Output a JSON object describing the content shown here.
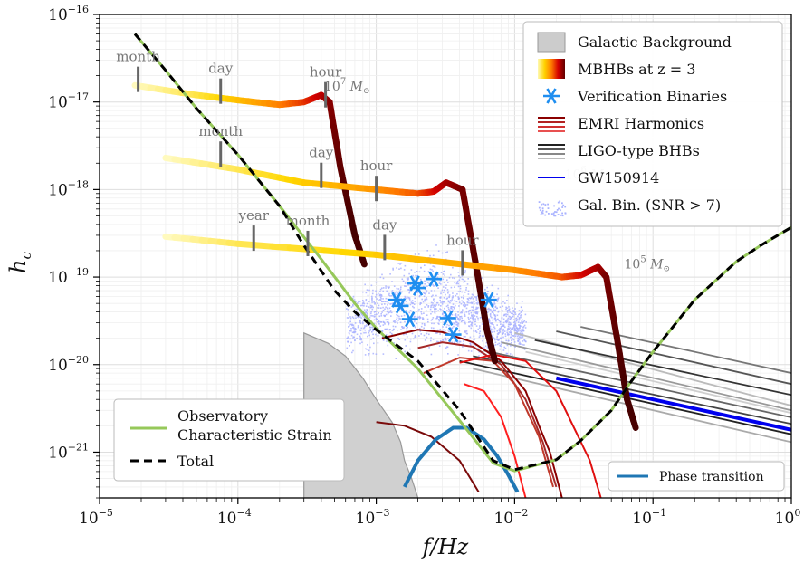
{
  "chart_data": {
    "type": "line",
    "xlabel": "f/Hz",
    "ylabel": "h_c",
    "x_scale": "log",
    "y_scale": "log",
    "xlim": [
      1e-05,
      1
    ],
    "ylim": [
      3e-22,
      1e-16
    ],
    "x_ticks": [
      {
        "base": "10",
        "exp": "−5",
        "value": 1e-05
      },
      {
        "base": "10",
        "exp": "−4",
        "value": 0.0001
      },
      {
        "base": "10",
        "exp": "−3",
        "value": 0.001
      },
      {
        "base": "10",
        "exp": "−2",
        "value": 0.01
      },
      {
        "base": "10",
        "exp": "−1",
        "value": 0.1
      },
      {
        "base": "10",
        "exp": "0",
        "value": 1
      }
    ],
    "y_ticks": [
      {
        "base": "10",
        "exp": "−16",
        "value": 1e-16
      },
      {
        "base": "10",
        "exp": "−17",
        "value": 1e-17
      },
      {
        "base": "10",
        "exp": "−18",
        "value": 1e-18
      },
      {
        "base": "10",
        "exp": "−19",
        "value": 1e-19
      },
      {
        "base": "10",
        "exp": "−20",
        "value": 1e-20
      },
      {
        "base": "10",
        "exp": "−21",
        "value": 1e-21
      }
    ],
    "grid": true,
    "legends": {
      "main": {
        "placement": "top-right",
        "entries": [
          {
            "label": "Galactic Background",
            "kind": "patch",
            "color": "#cccccc"
          },
          {
            "label": "MBHBs at z = 3",
            "kind": "gradient",
            "colors": [
              "#fff9b0",
              "#ffd200",
              "#ff7a00",
              "#d40000",
              "#600000"
            ]
          },
          {
            "label": "Verification Binaries",
            "kind": "star",
            "color": "#1f8ef0"
          },
          {
            "label": "EMRI Harmonics",
            "kind": "lines",
            "color": "#a01818"
          },
          {
            "label": "LIGO-type BHBs",
            "kind": "lines",
            "color": "#333333"
          },
          {
            "label": "GW150914",
            "kind": "line",
            "color": "#0000ee"
          },
          {
            "label": "Gal. Bin. (SNR > 7)",
            "kind": "dots",
            "color": "#9aa6ff"
          }
        ]
      },
      "lower_left": {
        "placement": "lower-left",
        "entries": [
          {
            "label": "Observatory",
            "label2": "Characteristic Strain",
            "kind": "line",
            "color": "#96c85a"
          },
          {
            "label": "Total",
            "kind": "dashed",
            "color": "#000000"
          }
        ]
      },
      "lower_right": {
        "placement": "lower-right",
        "entries": [
          {
            "label": "Phase transition",
            "kind": "line",
            "color": "#1f77b4"
          }
        ]
      }
    },
    "mass_labels": [
      {
        "text": "10",
        "exp": "7",
        "unit": "M",
        "f": 0.00042,
        "h": 1.35e-17
      },
      {
        "text": "10",
        "exp": "6",
        "unit": "M",
        "f": 0.023,
        "h": 1.32e-18
      },
      {
        "text": "10",
        "exp": "5",
        "unit": "M",
        "f": 0.062,
        "h": 1.25e-19
      }
    ],
    "time_markers": [
      {
        "label": "month",
        "f": 1.9e-05,
        "h": 1.5e-17
      },
      {
        "label": "day",
        "f": 7.5e-05,
        "h": 1.1e-17
      },
      {
        "label": "hour",
        "f": 0.00043,
        "h": 1e-17
      },
      {
        "label": "year",
        "f": 3e-06,
        "h": 2.4e-18
      },
      {
        "label": "month",
        "f": 7.5e-05,
        "h": 2.1e-18
      },
      {
        "label": "day",
        "f": 0.0004,
        "h": 1.2e-18
      },
      {
        "label": "hour",
        "f": 0.001,
        "h": 8.5e-19
      },
      {
        "label": "year",
        "f": 0.00013,
        "h": 2.3e-19
      },
      {
        "label": "month",
        "f": 0.00032,
        "h": 2e-19
      },
      {
        "label": "day",
        "f": 0.00115,
        "h": 1.8e-19
      },
      {
        "label": "hour",
        "f": 0.0042,
        "h": 1.2e-19
      }
    ],
    "series": [
      {
        "kind": "observatory",
        "color": "#96c85a",
        "points": [
          [
            1.8e-05,
            6e-17
          ],
          [
            3e-05,
            2.3e-17
          ],
          [
            5e-05,
            8.5e-18
          ],
          [
            0.0001,
            2.5e-18
          ],
          [
            0.0002,
            6.5e-19
          ],
          [
            0.0004,
            1.6e-19
          ],
          [
            0.0007,
            5e-20
          ],
          [
            0.001,
            2.6e-20
          ],
          [
            0.002,
            9e-21
          ],
          [
            0.004,
            2.3e-21
          ],
          [
            0.007,
            7.5e-22
          ],
          [
            0.01,
            6.1e-22
          ],
          [
            0.02,
            8.2e-22
          ],
          [
            0.03,
            1.35e-21
          ],
          [
            0.05,
            3e-21
          ],
          [
            0.07,
            6.5e-21
          ],
          [
            0.1,
            1.4e-20
          ],
          [
            0.2,
            5.5e-20
          ],
          [
            0.4,
            1.5e-19
          ],
          [
            0.6,
            2.3e-19
          ],
          [
            1,
            3.7e-19
          ]
        ]
      },
      {
        "kind": "total",
        "color": "#000000",
        "dashed": true,
        "points": [
          [
            1.8e-05,
            6e-17
          ],
          [
            3e-05,
            2.3e-17
          ],
          [
            5e-05,
            8.5e-18
          ],
          [
            0.0001,
            2.5e-18
          ],
          [
            0.0002,
            6.5e-19
          ],
          [
            0.0003,
            2.3e-19
          ],
          [
            0.0005,
            7e-20
          ],
          [
            0.0007,
            4e-20
          ],
          [
            0.001,
            2.5e-20
          ],
          [
            0.002,
            1.1e-20
          ],
          [
            0.004,
            3e-21
          ],
          [
            0.007,
            8e-22
          ],
          [
            0.01,
            6.3e-22
          ],
          [
            0.02,
            8.2e-22
          ],
          [
            0.03,
            1.35e-21
          ],
          [
            0.05,
            3e-21
          ],
          [
            0.07,
            6.5e-21
          ],
          [
            0.1,
            1.4e-20
          ],
          [
            0.2,
            5.5e-20
          ],
          [
            0.4,
            1.5e-19
          ],
          [
            0.6,
            2.3e-19
          ],
          [
            1,
            3.7e-19
          ]
        ]
      },
      {
        "kind": "mbhb",
        "mass": "1e7",
        "points": [
          [
            1.8e-05,
            1.55e-17
          ],
          [
            5e-05,
            1.2e-17
          ],
          [
            0.0001,
            1.05e-17
          ],
          [
            0.0002,
            9.3e-18
          ],
          [
            0.0003,
            1e-17
          ],
          [
            0.0004,
            1.2e-17
          ],
          [
            0.00046,
            1e-17
          ],
          [
            0.00055,
            1.8e-18
          ],
          [
            0.0007,
            3e-19
          ],
          [
            0.00082,
            1.4e-19
          ]
        ]
      },
      {
        "kind": "mbhb",
        "mass": "1e6",
        "points": [
          [
            3e-05,
            2.3e-18
          ],
          [
            0.0001,
            1.7e-18
          ],
          [
            0.0003,
            1.2e-18
          ],
          [
            0.001,
            1e-18
          ],
          [
            0.002,
            9e-19
          ],
          [
            0.0026,
            9.5e-19
          ],
          [
            0.0032,
            1.2e-18
          ],
          [
            0.0042,
            1e-18
          ],
          [
            0.0052,
            1.5e-19
          ],
          [
            0.0063,
            2.5e-20
          ],
          [
            0.0072,
            1.1e-20
          ]
        ]
      },
      {
        "kind": "mbhb",
        "mass": "1e5",
        "points": [
          [
            3e-05,
            2.9e-19
          ],
          [
            0.0001,
            2.4e-19
          ],
          [
            0.001,
            1.8e-19
          ],
          [
            0.01,
            1.2e-19
          ],
          [
            0.022,
            1e-19
          ],
          [
            0.03,
            1.05e-19
          ],
          [
            0.04,
            1.3e-19
          ],
          [
            0.046,
            1e-19
          ],
          [
            0.055,
            2e-20
          ],
          [
            0.065,
            4e-21
          ],
          [
            0.075,
            1.9e-21
          ]
        ]
      },
      {
        "kind": "phase_transition",
        "color": "#1f77b4",
        "points": [
          [
            0.0016,
            4e-22
          ],
          [
            0.002,
            8e-22
          ],
          [
            0.0027,
            1.4e-21
          ],
          [
            0.0036,
            1.9e-21
          ],
          [
            0.0045,
            1.9e-21
          ],
          [
            0.006,
            1.4e-21
          ],
          [
            0.0075,
            9e-22
          ],
          [
            0.009,
            5.5e-22
          ],
          [
            0.0105,
            3.5e-22
          ]
        ]
      },
      {
        "kind": "gw150914",
        "color": "#0000ee",
        "points": [
          [
            0.02,
            7e-21
          ],
          [
            1,
            1.8e-21
          ]
        ]
      },
      {
        "kind": "galactic_background",
        "color": "#d0d0d0",
        "points": [
          [
            0.0003,
            3e-22
          ],
          [
            0.0003,
            2.3e-20
          ],
          [
            0.00045,
            1.75e-20
          ],
          [
            0.0006,
            1.25e-20
          ],
          [
            0.0008,
            7e-21
          ],
          [
            0.001,
            4e-21
          ],
          [
            0.0013,
            2.2e-21
          ],
          [
            0.0015,
            1.3e-21
          ],
          [
            0.0016,
            8e-22
          ],
          [
            0.0018,
            5e-22
          ],
          [
            0.002,
            3e-22
          ]
        ]
      },
      {
        "kind": "verification_binaries",
        "color": "#1f8ef0",
        "points": [
          [
            0.0014,
            5.5e-20
          ],
          [
            0.0015,
            4.7e-20
          ],
          [
            0.00175,
            3.3e-20
          ],
          [
            0.0019,
            8.5e-20
          ],
          [
            0.002,
            7.5e-20
          ],
          [
            0.0026,
            9.5e-20
          ],
          [
            0.0033,
            3.4e-20
          ],
          [
            0.0036,
            2.2e-20
          ],
          [
            0.0065,
            5.5e-20
          ]
        ]
      }
    ],
    "emri_tracks": [
      [
        [
          0.0011,
          2e-20
        ],
        [
          0.002,
          2.5e-20
        ],
        [
          0.003,
          2.35e-20
        ],
        [
          0.005,
          1.8e-20
        ],
        [
          0.008,
          1.1e-20
        ],
        [
          0.012,
          5e-21
        ],
        [
          0.015,
          2e-21
        ],
        [
          0.018,
          1e-21
        ],
        [
          0.022,
          3e-22
        ]
      ],
      [
        [
          0.002,
          1.55e-20
        ],
        [
          0.003,
          1.8e-20
        ],
        [
          0.005,
          1.6e-20
        ],
        [
          0.008,
          1e-20
        ],
        [
          0.012,
          4e-21
        ],
        [
          0.016,
          1.3e-21
        ],
        [
          0.02,
          4e-22
        ]
      ],
      [
        [
          0.0022,
          8e-21
        ],
        [
          0.004,
          1.2e-20
        ],
        [
          0.007,
          1.1e-20
        ],
        [
          0.01,
          6e-21
        ],
        [
          0.015,
          1.5e-21
        ],
        [
          0.019,
          4e-22
        ]
      ],
      [
        [
          0.004,
          1.05e-20
        ],
        [
          0.007,
          1.3e-20
        ],
        [
          0.012,
          1.1e-20
        ],
        [
          0.02,
          5e-21
        ],
        [
          0.035,
          8e-22
        ],
        [
          0.042,
          3e-22
        ]
      ],
      [
        [
          0.0043,
          6e-21
        ],
        [
          0.006,
          5e-21
        ],
        [
          0.008,
          2.5e-21
        ],
        [
          0.01,
          9e-22
        ],
        [
          0.012,
          3e-22
        ]
      ],
      [
        [
          0.001,
          2.2e-21
        ],
        [
          0.0016,
          2e-21
        ],
        [
          0.0025,
          1.5e-21
        ],
        [
          0.004,
          8e-22
        ],
        [
          0.0055,
          3.5e-22
        ]
      ]
    ],
    "ligo_tracks": [
      [
        [
          0.004,
          1.1e-20
        ],
        [
          1,
          1.6e-21
        ]
      ],
      [
        [
          0.005,
          1.25e-20
        ],
        [
          1,
          2.1e-21
        ]
      ],
      [
        [
          0.006,
          1.45e-20
        ],
        [
          1,
          2.5e-21
        ]
      ],
      [
        [
          0.008,
          1.8e-20
        ],
        [
          1,
          3e-21
        ]
      ],
      [
        [
          0.01,
          2.3e-20
        ],
        [
          1,
          3.4e-21
        ]
      ],
      [
        [
          0.014,
          1.9e-20
        ],
        [
          1,
          4.5e-21
        ]
      ],
      [
        [
          0.02,
          2.4e-20
        ],
        [
          1,
          6e-21
        ]
      ],
      [
        [
          0.03,
          2.7e-20
        ],
        [
          1,
          8e-21
        ]
      ],
      [
        [
          0.005,
          9e-21
        ],
        [
          1,
          1.3e-21
        ]
      ],
      [
        [
          0.012,
          1.4e-20
        ],
        [
          1,
          2.8e-21
        ]
      ]
    ],
    "galactic_binaries_cloud": {
      "color": "#a9b2ff",
      "f_range": [
        0.0006,
        0.012
      ],
      "h_center": 3e-20
    }
  }
}
